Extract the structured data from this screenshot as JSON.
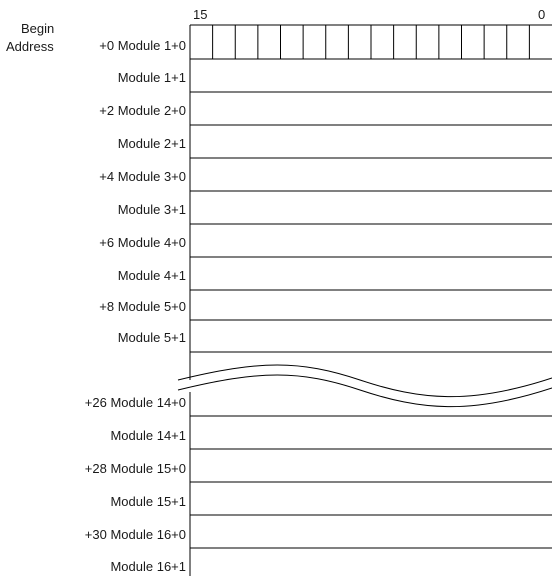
{
  "header": {
    "begin_label": "Begin",
    "address_label": "Address",
    "bit_high": "15",
    "bit_low": "0",
    "bit_count": 16
  },
  "rows": [
    {
      "offset": "+0",
      "label": "Module 1+0"
    },
    {
      "offset": "",
      "label": "Module 1+1"
    },
    {
      "offset": "+2",
      "label": "Module 2+0"
    },
    {
      "offset": "",
      "label": "Module 2+1"
    },
    {
      "offset": "+4",
      "label": "Module 3+0"
    },
    {
      "offset": "",
      "label": "Module 3+1"
    },
    {
      "offset": "+6",
      "label": "Module 4+0"
    },
    {
      "offset": "",
      "label": "Module 4+1"
    },
    {
      "offset": "+8",
      "label": "Module 5+0"
    },
    {
      "offset": "",
      "label": "Module 5+1"
    },
    {
      "offset": "+26",
      "label": "Module 14+0"
    },
    {
      "offset": "",
      "label": "Module 14+1"
    },
    {
      "offset": "+28",
      "label": "Module 15+0"
    },
    {
      "offset": "",
      "label": "Module 15+1"
    },
    {
      "offset": "+30",
      "label": "Module 16+0"
    },
    {
      "offset": "",
      "label": "Module 16+1"
    }
  ]
}
